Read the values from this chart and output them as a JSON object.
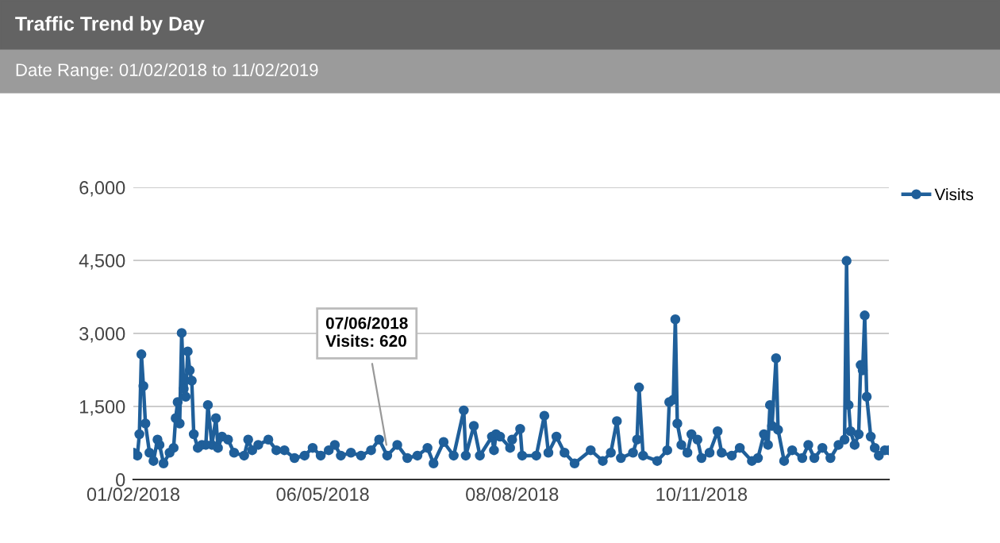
{
  "chart_data": {
    "type": "line",
    "title": "Traffic Trend by Day",
    "subtitle": "Date Range: 01/02/2018 to 11/02/2019",
    "annotations": [
      {
        "text": "07/06/2018\nVisits: 620",
        "x": "2018-06-07",
        "y": 620
      }
    ],
    "x": [
      "2018-02-01",
      "2018-02-03",
      "2018-02-04",
      "2018-02-05",
      "2018-02-06",
      "2018-02-07",
      "2018-02-09",
      "2018-02-11",
      "2018-02-13",
      "2018-02-14",
      "2018-02-16",
      "2018-02-19",
      "2018-02-21",
      "2018-02-22",
      "2018-02-23",
      "2018-02-24",
      "2018-02-25",
      "2018-02-26",
      "2018-02-27",
      "2018-02-28",
      "2018-03-01",
      "2018-03-02",
      "2018-03-03",
      "2018-03-05",
      "2018-03-07",
      "2018-03-09",
      "2018-03-10",
      "2018-03-12",
      "2018-03-14",
      "2018-03-15",
      "2018-03-17",
      "2018-03-20",
      "2018-03-23",
      "2018-03-28",
      "2018-03-30",
      "2018-04-01",
      "2018-04-04",
      "2018-04-09",
      "2018-04-13",
      "2018-04-17",
      "2018-04-22",
      "2018-04-27",
      "2018-05-01",
      "2018-05-05",
      "2018-05-09",
      "2018-05-12",
      "2018-05-15",
      "2018-05-20",
      "2018-05-25",
      "2018-05-30",
      "2018-06-03",
      "2018-06-07",
      "2018-06-12",
      "2018-06-17",
      "2018-06-22",
      "2018-06-27",
      "2018-06-30",
      "2018-07-05",
      "2018-07-10",
      "2018-07-15",
      "2018-07-16",
      "2018-07-20",
      "2018-07-23",
      "2018-07-29",
      "2018-07-30",
      "2018-07-31",
      "2018-08-02",
      "2018-08-07",
      "2018-08-08",
      "2018-08-12",
      "2018-08-13",
      "2018-08-20",
      "2018-08-24",
      "2018-08-26",
      "2018-08-30",
      "2018-09-03",
      "2018-09-08",
      "2018-09-16",
      "2018-09-22",
      "2018-09-26",
      "2018-09-29",
      "2018-10-01",
      "2018-10-07",
      "2018-10-09",
      "2018-10-10",
      "2018-10-12",
      "2018-10-19",
      "2018-10-24",
      "2018-10-25",
      "2018-10-27",
      "2018-10-28",
      "2018-10-29",
      "2018-10-31",
      "2018-11-03",
      "2018-11-05",
      "2018-11-08",
      "2018-11-10",
      "2018-11-14",
      "2018-11-18",
      "2018-11-20",
      "2018-11-25",
      "2018-11-29",
      "2018-12-05",
      "2018-12-08",
      "2018-12-11",
      "2018-12-13",
      "2018-12-14",
      "2018-12-15",
      "2018-12-17",
      "2018-12-18",
      "2018-12-21",
      "2018-12-25",
      "2018-12-30",
      "2019-01-02",
      "2019-01-05",
      "2019-01-09",
      "2019-01-13",
      "2019-01-17",
      "2019-01-20",
      "2019-01-21",
      "2019-01-22",
      "2019-01-23",
      "2019-01-25",
      "2019-01-27",
      "2019-01-28",
      "2019-01-29",
      "2019-01-30",
      "2019-01-31",
      "2019-02-02",
      "2019-02-04",
      "2019-02-06",
      "2019-02-09",
      "2019-02-11"
    ],
    "series": [
      {
        "name": "Visits",
        "color": "#1f5f9a",
        "values": [
          550,
          490,
          930,
          2570,
          1920,
          1150,
          550,
          380,
          820,
          710,
          330,
          550,
          650,
          1260,
          1590,
          1150,
          3010,
          1860,
          1700,
          2630,
          2240,
          2030,
          930,
          650,
          710,
          710,
          1530,
          710,
          1260,
          650,
          880,
          820,
          550,
          490,
          820,
          600,
          710,
          820,
          600,
          600,
          440,
          490,
          650,
          490,
          600,
          710,
          490,
          550,
          490,
          600,
          820,
          490,
          710,
          440,
          490,
          650,
          330,
          770,
          490,
          1420,
          490,
          1100,
          490,
          880,
          600,
          930,
          880,
          650,
          820,
          1040,
          490,
          490,
          1310,
          550,
          880,
          550,
          330,
          600,
          380,
          550,
          1200,
          440,
          550,
          820,
          1890,
          490,
          380,
          600,
          1590,
          1640,
          3290,
          1150,
          710,
          550,
          930,
          820,
          440,
          550,
          990,
          550,
          490,
          650,
          380,
          440,
          930,
          710,
          1530,
          1100,
          2490,
          1020,
          380,
          600,
          440,
          710,
          440,
          650,
          440,
          710,
          820,
          4490,
          1530,
          990,
          710,
          930,
          2350,
          2240,
          3370,
          1700,
          880,
          650,
          490,
          600,
          600
        ]
      }
    ],
    "xlim": [
      "2018-02-01",
      "2019-02-11"
    ],
    "xticks": [
      {
        "value": "2018-02-01",
        "label": "01/02/2018"
      },
      {
        "value": "2018-05-06",
        "label": "06/05/2018"
      },
      {
        "value": "2018-08-08",
        "label": "08/08/2018"
      },
      {
        "value": "2018-11-10",
        "label": "10/11/2018"
      }
    ],
    "ylim": [
      0,
      6000
    ],
    "yticks": [
      0,
      {
        "value": 1500,
        "label": "1,500"
      },
      {
        "value": 3000,
        "label": "3,000"
      },
      {
        "value": 4500,
        "label": "4,500"
      },
      {
        "value": 6000,
        "label": "6,000"
      }
    ],
    "grid": "y",
    "legend": "right",
    "marker": "circle",
    "line_style": "solid"
  }
}
